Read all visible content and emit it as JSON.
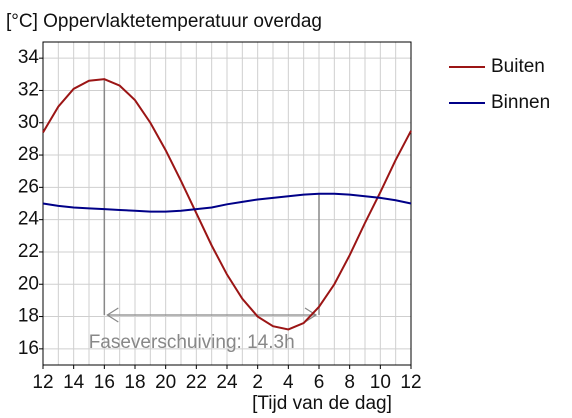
{
  "chart_data": {
    "type": "line",
    "title": "[°C] Oppervlaktetemperatuur overdag",
    "xlabel": "[Tijd van de dag]",
    "x": [
      12,
      13,
      14,
      15,
      16,
      17,
      18,
      19,
      20,
      21,
      22,
      23,
      24,
      25,
      26,
      27,
      28,
      29,
      30,
      31,
      32,
      33,
      34,
      35,
      36
    ],
    "series": [
      {
        "name": "Buiten",
        "color": "#9b1515",
        "values": [
          29.4,
          31.0,
          32.1,
          32.6,
          32.7,
          32.3,
          31.4,
          30.0,
          28.3,
          26.4,
          24.4,
          22.4,
          20.6,
          19.1,
          18.0,
          17.4,
          17.2,
          17.6,
          18.6,
          20.0,
          21.8,
          23.8,
          25.7,
          27.7,
          29.5
        ]
      },
      {
        "name": "Binnen",
        "color": "#000088",
        "values": [
          25.0,
          24.85,
          24.75,
          24.7,
          24.65,
          24.6,
          24.55,
          24.5,
          24.5,
          24.55,
          24.65,
          24.75,
          24.95,
          25.1,
          25.25,
          25.35,
          25.45,
          25.55,
          25.6,
          25.6,
          25.55,
          25.45,
          25.35,
          25.2,
          25.0
        ]
      }
    ],
    "annotation": "Faseverschuiving: 14.3h",
    "xlim": [
      12,
      36
    ],
    "xticks": [
      12,
      14,
      16,
      18,
      20,
      22,
      24,
      {
        "value": 26,
        "label": "2"
      },
      {
        "value": 28,
        "label": "4"
      },
      {
        "value": 30,
        "label": "6"
      },
      {
        "value": 32,
        "label": "8"
      },
      {
        "value": 34,
        "label": "10"
      },
      {
        "value": 36,
        "label": "12"
      }
    ],
    "ylim": [
      15,
      35
    ],
    "yticks": [
      16,
      18,
      20,
      22,
      24,
      26,
      28,
      30,
      32,
      34
    ],
    "grid": true,
    "legend": "right"
  }
}
